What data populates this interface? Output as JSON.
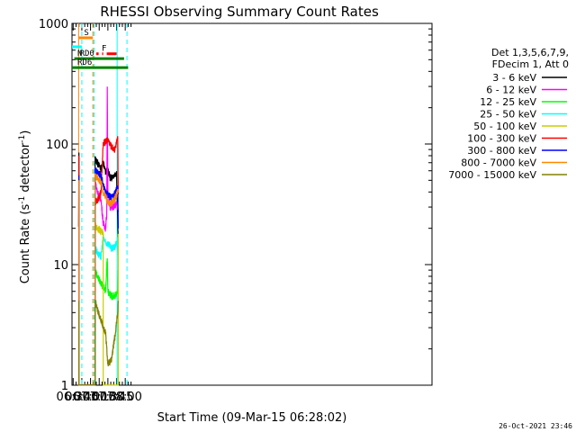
{
  "chart_data": {
    "type": "line",
    "title": "RHESSI Observing Summary Count Rates",
    "xlabel": "Start Time (09-Mar-15 06:28:02)",
    "ylabel_main": "Count Rate (s",
    "ylabel_sup1": "-1",
    "ylabel_mid": " detector",
    "ylabel_sup2": "-1",
    "ylabel_end": ")",
    "x_range_min": [
      388,
      1010
    ],
    "y_range": [
      1,
      1000
    ],
    "y_scale": "log",
    "x_ticks": [
      {
        "t": 390,
        "label": "06:30"
      },
      {
        "t": 405,
        "label": "06:45"
      },
      {
        "t": 420,
        "label": "07:00"
      },
      {
        "t": 435,
        "label": "07:15"
      },
      {
        "t": 450,
        "label": "07:30"
      },
      {
        "t": 465,
        "label": "07:45"
      },
      {
        "t": 480,
        "label": "08:00"
      }
    ],
    "y_ticks": [
      {
        "v": 1,
        "label": "1"
      },
      {
        "v": 10,
        "label": "10"
      },
      {
        "v": 100,
        "label": "100"
      },
      {
        "v": 1000,
        "label": "1000"
      }
    ],
    "legend_header": [
      "Det 1,3,5,6,7,9,",
      "FDecim 1, Att 0"
    ],
    "legend_position": "right",
    "series": [
      {
        "name": "3 - 6 keV",
        "color": "#000000",
        "values": [
          [
            "06:39:30",
            20
          ],
          [
            "06:40:00",
            85
          ],
          [
            "07:08:00",
            75
          ],
          [
            "07:12:00",
            70
          ],
          [
            "07:18:00",
            62
          ],
          [
            "07:22:00",
            70
          ],
          [
            "07:26:00",
            58
          ],
          [
            "07:30:00",
            62
          ],
          [
            "07:34:00",
            52
          ],
          [
            "07:40:00",
            55
          ],
          [
            "07:45:00",
            58
          ],
          [
            "07:48:00",
            14
          ]
        ]
      },
      {
        "name": "6 - 12 keV",
        "color": "#ff00ff",
        "values": [
          [
            "06:40:00",
            30
          ],
          [
            "07:08:00",
            48
          ],
          [
            "07:12:00",
            40
          ],
          [
            "07:18:00",
            35
          ],
          [
            "07:22:00",
            22
          ],
          [
            "07:26:00",
            20
          ],
          [
            "07:28:00",
            26
          ],
          [
            "07:29:00",
            280
          ],
          [
            "07:30:00",
            40
          ],
          [
            "07:34:00",
            30
          ],
          [
            "07:40:00",
            30
          ],
          [
            "07:45:00",
            32
          ],
          [
            "07:48:00",
            28
          ]
        ]
      },
      {
        "name": "12 - 25 keV",
        "color": "#00ff00",
        "values": [
          [
            "06:40:00",
            10
          ],
          [
            "07:08:00",
            9
          ],
          [
            "07:12:00",
            8
          ],
          [
            "07:18:00",
            7
          ],
          [
            "07:22:00",
            6.5
          ],
          [
            "07:26:00",
            6
          ],
          [
            "07:29:00",
            12
          ],
          [
            "07:30:00",
            6
          ],
          [
            "07:36:00",
            5.5
          ],
          [
            "07:42:00",
            5.5
          ],
          [
            "07:47:00",
            6
          ],
          [
            "07:48:00",
            9
          ]
        ]
      },
      {
        "name": "25 - 50 keV",
        "color": "#00ffff",
        "values": [
          [
            "06:40:00",
            14
          ],
          [
            "07:08:00",
            14
          ],
          [
            "07:12:00",
            12.5
          ],
          [
            "07:18:00",
            11.5
          ],
          [
            "07:22:00",
            17
          ],
          [
            "07:26:00",
            15
          ],
          [
            "07:30:00",
            15
          ],
          [
            "07:36:00",
            13.5
          ],
          [
            "07:42:00",
            14
          ],
          [
            "07:47:00",
            16
          ],
          [
            "07:48:00",
            12
          ]
        ]
      },
      {
        "name": "50 - 100 keV",
        "color": "#cccc00",
        "values": [
          [
            "06:40:00",
            20
          ],
          [
            "07:08:00",
            21
          ],
          [
            "07:12:00",
            20
          ],
          [
            "07:18:00",
            19
          ],
          [
            "07:22:00",
            18
          ],
          [
            "07:48:00",
            18
          ]
        ]
      },
      {
        "name": "100 - 300 keV",
        "color": "#ff0000",
        "values": [
          [
            "06:40:00",
            80
          ],
          [
            "07:08:00",
            33
          ],
          [
            "07:12:00",
            34
          ],
          [
            "07:18:00",
            40
          ],
          [
            "07:22:00",
            100
          ],
          [
            "07:30:00",
            110
          ],
          [
            "07:36:00",
            95
          ],
          [
            "07:42:00",
            90
          ],
          [
            "07:47:00",
            110
          ],
          [
            "07:48:00",
            38
          ]
        ]
      },
      {
        "name": "300 - 800 keV",
        "color": "#0000ff",
        "values": [
          [
            "06:40:00",
            55
          ],
          [
            "07:08:00",
            60
          ],
          [
            "07:12:00",
            58
          ],
          [
            "07:18:00",
            55
          ],
          [
            "07:22:00",
            45
          ],
          [
            "07:30:00",
            38
          ],
          [
            "07:36:00",
            36
          ],
          [
            "07:42:00",
            38
          ],
          [
            "07:47:00",
            45
          ],
          [
            "07:48:00",
            20
          ]
        ]
      },
      {
        "name": "800 - 7000 keV",
        "color": "#ff8800",
        "values": [
          [
            "06:40:00",
            50
          ],
          [
            "07:08:00",
            55
          ],
          [
            "07:12:00",
            52
          ],
          [
            "07:18:00",
            48
          ],
          [
            "07:22:00",
            40
          ],
          [
            "07:30:00",
            33
          ],
          [
            "07:36:00",
            32
          ],
          [
            "07:42:00",
            35
          ],
          [
            "07:47:00",
            40
          ],
          [
            "07:48:00",
            40
          ]
        ]
      },
      {
        "name": "7000 - 15000 keV",
        "color": "#808000",
        "values": [
          [
            "06:40:00",
            5
          ],
          [
            "07:08:00",
            5
          ],
          [
            "07:12:00",
            4.2
          ],
          [
            "07:18:00",
            3.5
          ],
          [
            "07:22:00",
            3
          ],
          [
            "07:26:00",
            2.7
          ],
          [
            "07:30:00",
            1.5
          ],
          [
            "07:36:00",
            1.6
          ],
          [
            "07:42:00",
            2.5
          ],
          [
            "07:47:00",
            4
          ],
          [
            "07:48:00",
            5
          ]
        ]
      }
    ],
    "flags": [
      {
        "label": "S",
        "color": "#ff8800",
        "y": 760,
        "from": "06:39:30",
        "to": "07:04:00"
      },
      {
        "label": "N",
        "color": "#00ffff",
        "y": 640,
        "from": "06:28:00",
        "to": "06:45:00"
      },
      {
        "label": "F",
        "color": "#ff0000",
        "y": 560,
        "segments": [
          [
            "07:10:00",
            "07:14:00"
          ],
          [
            "07:20:00",
            "07:22:00"
          ],
          [
            "07:28:00",
            "07:45:00"
          ]
        ]
      },
      {
        "label": "RD0",
        "color": "#008000",
        "y": 510,
        "from": "06:32:00",
        "to": "07:58:00"
      },
      {
        "label": "RD6",
        "color": "#008000",
        "y": 430,
        "from": "06:28:00",
        "to": "08:05:00"
      }
    ],
    "vlines": [
      {
        "t": "06:39:30",
        "color": "#ff8800",
        "style": "solid"
      },
      {
        "t": "06:45:00",
        "color": "#00ffff",
        "style": "dashed"
      },
      {
        "t": "07:04:00",
        "color": "#ff8800",
        "style": "dashed"
      },
      {
        "t": "07:06:00",
        "color": "#00ffff",
        "style": "dashed"
      },
      {
        "t": "07:46:00",
        "color": "#00ffff",
        "style": "solid"
      },
      {
        "t": "08:03:00",
        "color": "#00ffff",
        "style": "dashed"
      }
    ],
    "grid": false
  },
  "footer": {
    "timestamp": "26-Oct-2021 23:46"
  }
}
